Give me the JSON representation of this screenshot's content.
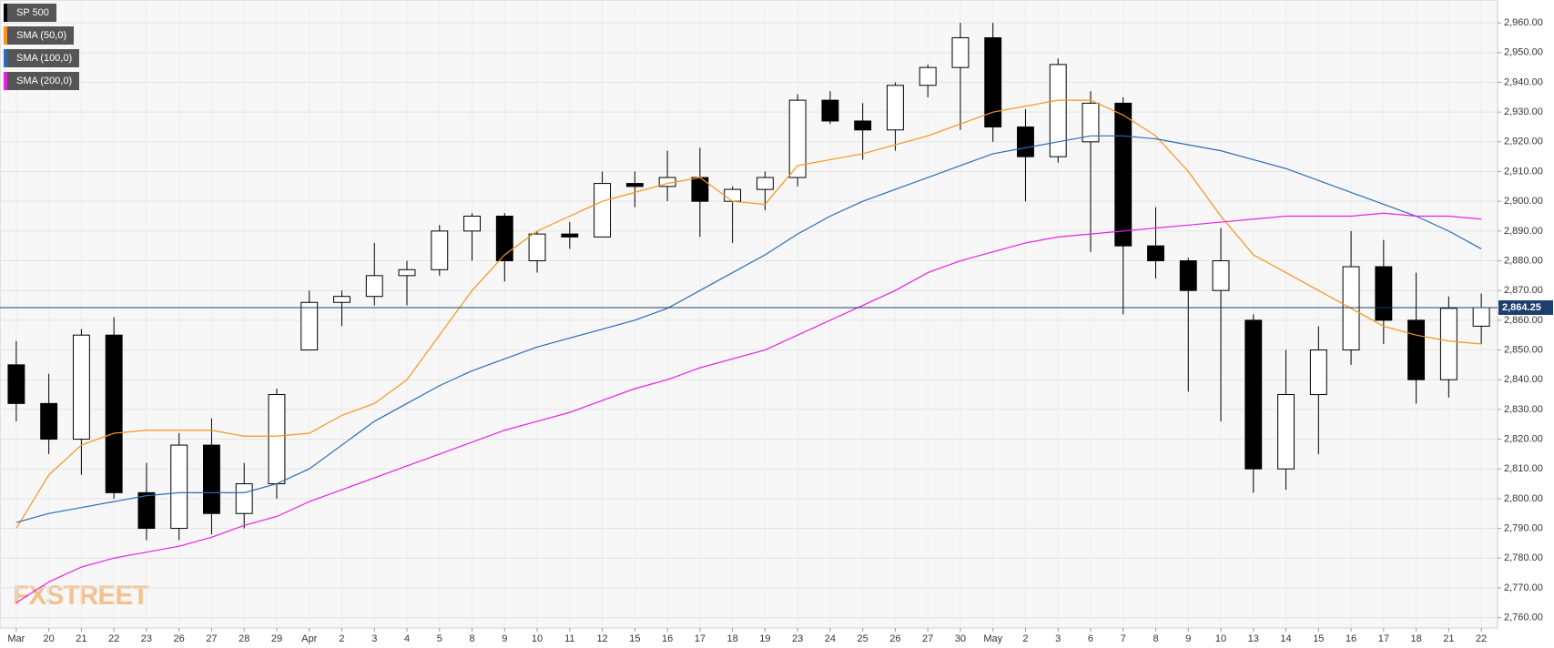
{
  "chart_data": {
    "type": "candlestick",
    "name": "SP 500",
    "color": "#000000",
    "categories": [
      "Mar",
      "20",
      "21",
      "22",
      "23",
      "26",
      "27",
      "28",
      "29",
      "Apr",
      "2",
      "3",
      "4",
      "5",
      "8",
      "9",
      "10",
      "11",
      "12",
      "15",
      "16",
      "17",
      "18",
      "19",
      "23",
      "24",
      "25",
      "26",
      "27",
      "30",
      "May",
      "2",
      "3",
      "6",
      "7",
      "8",
      "9",
      "10",
      "13",
      "14",
      "15",
      "16",
      "17",
      "18",
      "21",
      "22"
    ],
    "open": [
      2845,
      2832,
      2820,
      2855,
      2802,
      2790,
      2818,
      2795,
      2805,
      2850,
      2866,
      2868,
      2875,
      2877,
      2890,
      2895,
      2880,
      2889,
      2888,
      2906,
      2905,
      2908,
      2900,
      2904,
      2908,
      2934,
      2927,
      2924,
      2939,
      2945,
      2955,
      2925,
      2915,
      2920,
      2933,
      2885,
      2880,
      2870,
      2860,
      2810,
      2835,
      2850,
      2878,
      2860,
      2840,
      2858
    ],
    "high": [
      2853,
      2842,
      2857,
      2861,
      2812,
      2822,
      2827,
      2812,
      2837,
      2870,
      2870,
      2886,
      2880,
      2892,
      2896,
      2896,
      2890,
      2893,
      2910,
      2910,
      2917,
      2918,
      2905,
      2910,
      2936,
      2937,
      2933,
      2940,
      2946,
      2960,
      2960,
      2931,
      2948,
      2937,
      2935,
      2898,
      2881,
      2891,
      2862,
      2850,
      2858,
      2890,
      2887,
      2876,
      2868,
      2869
    ],
    "low": [
      2826,
      2815,
      2808,
      2800,
      2786,
      2786,
      2788,
      2790,
      2800,
      2850,
      2858,
      2865,
      2865,
      2875,
      2880,
      2873,
      2876,
      2884,
      2888,
      2898,
      2900,
      2888,
      2886,
      2897,
      2905,
      2926,
      2914,
      2917,
      2935,
      2924,
      2920,
      2900,
      2913,
      2883,
      2862,
      2874,
      2836,
      2826,
      2802,
      2803,
      2815,
      2845,
      2852,
      2832,
      2834,
      2852
    ],
    "close": [
      2832,
      2820,
      2855,
      2802,
      2790,
      2818,
      2795,
      2805,
      2835,
      2866,
      2868,
      2875,
      2877,
      2890,
      2895,
      2880,
      2889,
      2888,
      2906,
      2905,
      2908,
      2900,
      2904,
      2908,
      2934,
      2927,
      2924,
      2939,
      2945,
      2955,
      2925,
      2915,
      2946,
      2933,
      2885,
      2880,
      2870,
      2880,
      2810,
      2835,
      2850,
      2878,
      2860,
      2840,
      2864,
      2864.25
    ],
    "series": [
      {
        "name": "SMA (50,0)",
        "color": "#f7931e",
        "values": [
          2790,
          2808,
          2818,
          2822,
          2823,
          2823,
          2823,
          2821,
          2821,
          2822,
          2828,
          2832,
          2840,
          2855,
          2870,
          2882,
          2890,
          2895,
          2900,
          2903,
          2906,
          2908,
          2900,
          2899,
          2912,
          2914,
          2916,
          2919,
          2922,
          2926,
          2930,
          2932,
          2934,
          2934,
          2929,
          2922,
          2910,
          2895,
          2882,
          2876,
          2870,
          2864,
          2858,
          2855,
          2853,
          2852
        ]
      },
      {
        "name": "SMA (100,0)",
        "color": "#2a6db5",
        "values": [
          2792,
          2795,
          2797,
          2799,
          2801,
          2802,
          2802,
          2802,
          2805,
          2810,
          2818,
          2826,
          2832,
          2838,
          2843,
          2847,
          2851,
          2854,
          2857,
          2860,
          2864,
          2870,
          2876,
          2882,
          2889,
          2895,
          2900,
          2904,
          2908,
          2912,
          2916,
          2918,
          2920,
          2922,
          2922,
          2921,
          2919,
          2917,
          2914,
          2911,
          2907,
          2903,
          2899,
          2895,
          2890,
          2884
        ]
      },
      {
        "name": "SMA (200,0)",
        "color": "#e81ee8",
        "values": [
          2765,
          2772,
          2777,
          2780,
          2782,
          2784,
          2787,
          2791,
          2794,
          2799,
          2803,
          2807,
          2811,
          2815,
          2819,
          2823,
          2826,
          2829,
          2833,
          2837,
          2840,
          2844,
          2847,
          2850,
          2855,
          2860,
          2865,
          2870,
          2876,
          2880,
          2883,
          2886,
          2888,
          2889,
          2890,
          2891,
          2892,
          2893,
          2894,
          2895,
          2895,
          2895,
          2896,
          2895,
          2895,
          2894
        ]
      }
    ],
    "last_price": {
      "value": 2864.25,
      "label": "2,864.25",
      "color": "#1c3f6e"
    },
    "ylim": [
      2756.5,
      2967.7
    ],
    "yticks": [
      {
        "value": 2760,
        "label": "2,760.00"
      },
      {
        "value": 2770,
        "label": "2,770.00"
      },
      {
        "value": 2780,
        "label": "2,780.00"
      },
      {
        "value": 2790,
        "label": "2,790.00"
      },
      {
        "value": 2800,
        "label": "2,800.00"
      },
      {
        "value": 2810,
        "label": "2,810.00"
      },
      {
        "value": 2820,
        "label": "2,820.00"
      },
      {
        "value": 2830,
        "label": "2,830.00"
      },
      {
        "value": 2840,
        "label": "2,840.00"
      },
      {
        "value": 2850,
        "label": "2,850.00"
      },
      {
        "value": 2860,
        "label": "2,860.00"
      },
      {
        "value": 2870,
        "label": "2,870.00"
      },
      {
        "value": 2880,
        "label": "2,880.00"
      },
      {
        "value": 2890,
        "label": "2,890.00"
      },
      {
        "value": 2900,
        "label": "2,900.00"
      },
      {
        "value": 2910,
        "label": "2,910.00"
      },
      {
        "value": 2920,
        "label": "2,920.00"
      },
      {
        "value": 2930,
        "label": "2,930.00"
      },
      {
        "value": 2940,
        "label": "2,940.00"
      },
      {
        "value": 2950,
        "label": "2,950.00"
      },
      {
        "value": 2960,
        "label": "2,960.00"
      }
    ],
    "grid": true,
    "watermark": "FXSTREET"
  }
}
